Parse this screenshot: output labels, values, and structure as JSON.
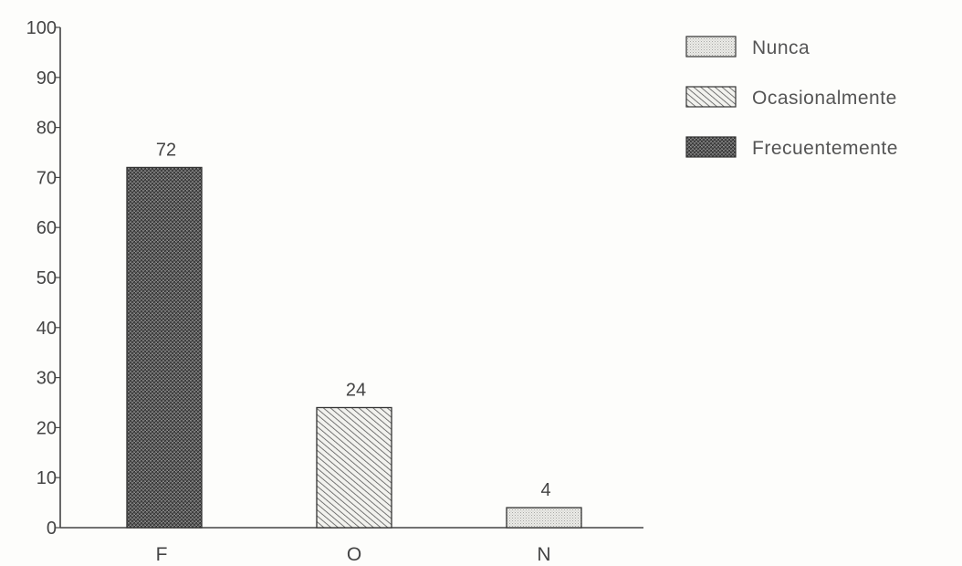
{
  "chart_data": {
    "type": "bar",
    "categories": [
      "F",
      "O",
      "N"
    ],
    "values": [
      72,
      24,
      4
    ],
    "value_labels": [
      "72",
      "24",
      "4"
    ],
    "ylim": [
      0,
      100
    ],
    "yticks": [
      0,
      10,
      20,
      30,
      40,
      50,
      60,
      70,
      80,
      90,
      100
    ],
    "title": "",
    "xlabel": "",
    "ylabel": "",
    "grid": false,
    "legend_position": "top-right",
    "legend": [
      {
        "label": "Nunca",
        "pattern": "dots-light"
      },
      {
        "label": "Ocasionalmente",
        "pattern": "diagonal-hatch"
      },
      {
        "label": "Frecuentemente",
        "pattern": "dense-crosshatch"
      }
    ],
    "bar_patterns": [
      "dense-crosshatch",
      "diagonal-hatch",
      "dots-light"
    ],
    "colors": {
      "axis": "#444444",
      "bar_outline": "#333333",
      "light_fill": "#e4e4e0",
      "hatch_line": "#444444",
      "dense_fill": "#5a5a5a"
    }
  }
}
